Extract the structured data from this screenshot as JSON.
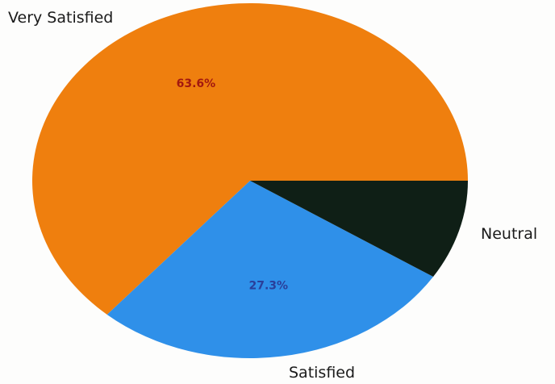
{
  "chart_data": {
    "type": "pie",
    "title": "",
    "categories": [
      "Very Satisfied",
      "Satisfied",
      "Neutral"
    ],
    "values": [
      63.6,
      27.3,
      9.1
    ],
    "value_labels": [
      "63.6%",
      "27.3%",
      ""
    ],
    "colors": [
      "#ef7f0e",
      "#2f90e9",
      "#0f1f16"
    ],
    "label_colors": [
      "#a3180f",
      "#2a3f9a",
      "#0f1f16"
    ],
    "start_angle_deg": 0,
    "direction": "counterclockwise",
    "legend": "none"
  }
}
